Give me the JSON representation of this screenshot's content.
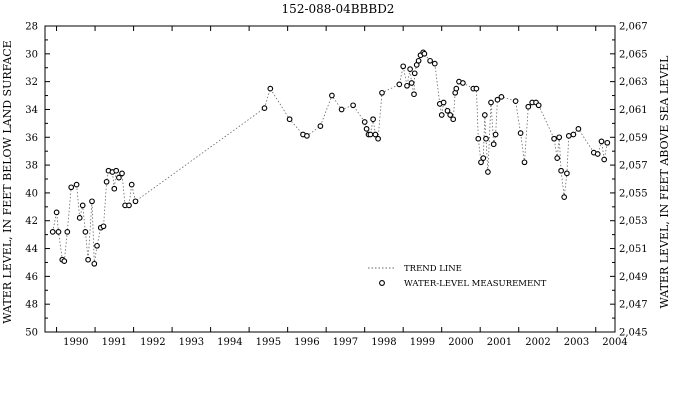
{
  "chart_data": {
    "type": "scatter",
    "title": "152-088-04BBBD2",
    "xlabel": "",
    "ylabel": "WATER LEVEL, IN FEET BELOW LAND SURFACE",
    "y2label": "WATER LEVEL, IN FEET ABOVE SEA LEVEL",
    "x_range": [
      1989.7,
      2004.5
    ],
    "ylim": [
      28,
      50
    ],
    "y_inverted": true,
    "y2lim": [
      2067,
      2045
    ],
    "grid": false,
    "legend_position": "lower-center",
    "x_tick_labels": [
      "1990",
      "1991",
      "1992",
      "1993",
      "1994",
      "1995",
      "1996",
      "1997",
      "1998",
      "1999",
      "2000",
      "2001",
      "2002",
      "2003",
      "2004"
    ],
    "y_ticks": [
      28,
      30,
      32,
      34,
      36,
      38,
      40,
      42,
      44,
      46,
      48,
      50
    ],
    "y_tick_labels": [
      "28",
      "30",
      "32",
      "34",
      "36",
      "38",
      "40",
      "42",
      "44",
      "46",
      "48",
      "50"
    ],
    "y2_tick_labels": [
      "2,067",
      "2,065",
      "2,063",
      "2,061",
      "2,059",
      "2,057",
      "2,055",
      "2,053",
      "2,051",
      "2,049",
      "2,047",
      "2,045"
    ],
    "series": [
      {
        "name": "TREND LINE",
        "style": "dotted-line",
        "points": [
          [
            1989.9,
            42.8
          ],
          [
            1990.0,
            41.4
          ],
          [
            1990.05,
            42.8
          ],
          [
            1990.15,
            44.8
          ],
          [
            1990.2,
            44.9
          ],
          [
            1990.28,
            42.8
          ],
          [
            1990.38,
            39.6
          ],
          [
            1990.52,
            39.4
          ],
          [
            1990.6,
            41.8
          ],
          [
            1990.68,
            40.9
          ],
          [
            1990.75,
            42.8
          ],
          [
            1990.82,
            44.8
          ],
          [
            1990.92,
            40.6
          ],
          [
            1990.98,
            45.1
          ],
          [
            1991.05,
            43.8
          ],
          [
            1991.15,
            42.5
          ],
          [
            1991.22,
            42.4
          ],
          [
            1991.3,
            39.2
          ],
          [
            1991.35,
            38.4
          ],
          [
            1991.45,
            38.5
          ],
          [
            1991.5,
            39.7
          ],
          [
            1991.55,
            38.4
          ],
          [
            1991.62,
            38.9
          ],
          [
            1991.7,
            38.6
          ],
          [
            1991.78,
            40.9
          ],
          [
            1991.88,
            40.9
          ],
          [
            1991.95,
            39.4
          ],
          [
            1992.05,
            40.6
          ],
          [
            1995.4,
            33.9
          ],
          [
            1995.55,
            32.5
          ],
          [
            1996.05,
            34.7
          ],
          [
            1996.4,
            35.8
          ],
          [
            1996.5,
            35.9
          ],
          [
            1996.85,
            35.2
          ],
          [
            1997.15,
            33.0
          ],
          [
            1997.4,
            34.0
          ],
          [
            1997.7,
            33.7
          ],
          [
            1998.0,
            34.9
          ],
          [
            1998.05,
            35.4
          ],
          [
            1998.1,
            35.8
          ],
          [
            1998.15,
            35.8
          ],
          [
            1998.22,
            34.7
          ],
          [
            1998.28,
            35.8
          ],
          [
            1998.35,
            36.1
          ],
          [
            1998.45,
            32.8
          ],
          [
            1998.9,
            32.2
          ],
          [
            1999.0,
            30.9
          ],
          [
            1999.1,
            32.3
          ],
          [
            1999.18,
            31.1
          ],
          [
            1999.22,
            32.1
          ],
          [
            1999.28,
            32.9
          ],
          [
            1999.3,
            31.4
          ],
          [
            1999.35,
            30.8
          ],
          [
            1999.4,
            30.5
          ],
          [
            1999.45,
            30.1
          ],
          [
            1999.52,
            29.9
          ],
          [
            1999.55,
            30.0
          ],
          [
            1999.7,
            30.5
          ],
          [
            1999.82,
            30.7
          ],
          [
            1999.95,
            33.6
          ],
          [
            2000.0,
            34.4
          ],
          [
            2000.05,
            33.5
          ],
          [
            2000.15,
            34.1
          ],
          [
            2000.22,
            34.4
          ],
          [
            2000.3,
            34.7
          ],
          [
            2000.35,
            32.8
          ],
          [
            2000.38,
            32.5
          ],
          [
            2000.45,
            32.0
          ],
          [
            2000.55,
            32.1
          ],
          [
            2000.82,
            32.5
          ],
          [
            2000.9,
            32.5
          ],
          [
            2000.95,
            36.1
          ],
          [
            2001.02,
            37.8
          ],
          [
            2001.08,
            37.5
          ],
          [
            2001.12,
            34.4
          ],
          [
            2001.15,
            36.1
          ],
          [
            2001.2,
            38.5
          ],
          [
            2001.28,
            33.5
          ],
          [
            2001.35,
            36.5
          ],
          [
            2001.4,
            35.8
          ],
          [
            2001.45,
            33.3
          ],
          [
            2001.55,
            33.1
          ],
          [
            2001.92,
            33.4
          ],
          [
            2002.05,
            35.7
          ],
          [
            2002.15,
            37.8
          ],
          [
            2002.25,
            33.8
          ],
          [
            2002.35,
            33.5
          ],
          [
            2002.45,
            33.5
          ],
          [
            2002.52,
            33.7
          ],
          [
            2002.92,
            36.1
          ],
          [
            2003.0,
            37.5
          ],
          [
            2003.05,
            36.0
          ],
          [
            2003.1,
            38.4
          ],
          [
            2003.18,
            40.3
          ],
          [
            2003.25,
            38.6
          ],
          [
            2003.3,
            35.9
          ],
          [
            2003.42,
            35.8
          ],
          [
            2003.55,
            35.4
          ],
          [
            2003.95,
            37.1
          ],
          [
            2004.05,
            37.2
          ],
          [
            2004.15,
            36.3
          ],
          [
            2004.22,
            37.6
          ],
          [
            2004.3,
            36.4
          ]
        ]
      },
      {
        "name": "WATER-LEVEL MEASUREMENT",
        "style": "open-circle-markers",
        "points": [
          [
            1989.9,
            42.8
          ],
          [
            1990.0,
            41.4
          ],
          [
            1990.05,
            42.8
          ],
          [
            1990.15,
            44.8
          ],
          [
            1990.2,
            44.9
          ],
          [
            1990.28,
            42.8
          ],
          [
            1990.38,
            39.6
          ],
          [
            1990.52,
            39.4
          ],
          [
            1990.6,
            41.8
          ],
          [
            1990.68,
            40.9
          ],
          [
            1990.75,
            42.8
          ],
          [
            1990.82,
            44.8
          ],
          [
            1990.92,
            40.6
          ],
          [
            1990.98,
            45.1
          ],
          [
            1991.05,
            43.8
          ],
          [
            1991.15,
            42.5
          ],
          [
            1991.22,
            42.4
          ],
          [
            1991.3,
            39.2
          ],
          [
            1991.35,
            38.4
          ],
          [
            1991.45,
            38.5
          ],
          [
            1991.5,
            39.7
          ],
          [
            1991.55,
            38.4
          ],
          [
            1991.62,
            38.9
          ],
          [
            1991.7,
            38.6
          ],
          [
            1991.78,
            40.9
          ],
          [
            1991.88,
            40.9
          ],
          [
            1991.95,
            39.4
          ],
          [
            1992.05,
            40.6
          ],
          [
            1995.4,
            33.9
          ],
          [
            1995.55,
            32.5
          ],
          [
            1996.05,
            34.7
          ],
          [
            1996.4,
            35.8
          ],
          [
            1996.5,
            35.9
          ],
          [
            1996.85,
            35.2
          ],
          [
            1997.15,
            33.0
          ],
          [
            1997.4,
            34.0
          ],
          [
            1997.7,
            33.7
          ],
          [
            1998.0,
            34.9
          ],
          [
            1998.05,
            35.4
          ],
          [
            1998.1,
            35.8
          ],
          [
            1998.15,
            35.8
          ],
          [
            1998.22,
            34.7
          ],
          [
            1998.28,
            35.8
          ],
          [
            1998.35,
            36.1
          ],
          [
            1998.45,
            32.8
          ],
          [
            1998.9,
            32.2
          ],
          [
            1999.0,
            30.9
          ],
          [
            1999.1,
            32.3
          ],
          [
            1999.18,
            31.1
          ],
          [
            1999.22,
            32.1
          ],
          [
            1999.28,
            32.9
          ],
          [
            1999.3,
            31.4
          ],
          [
            1999.35,
            30.8
          ],
          [
            1999.4,
            30.5
          ],
          [
            1999.45,
            30.1
          ],
          [
            1999.52,
            29.9
          ],
          [
            1999.55,
            30.0
          ],
          [
            1999.7,
            30.5
          ],
          [
            1999.82,
            30.7
          ],
          [
            1999.95,
            33.6
          ],
          [
            2000.0,
            34.4
          ],
          [
            2000.05,
            33.5
          ],
          [
            2000.15,
            34.1
          ],
          [
            2000.22,
            34.4
          ],
          [
            2000.3,
            34.7
          ],
          [
            2000.35,
            32.8
          ],
          [
            2000.38,
            32.5
          ],
          [
            2000.45,
            32.0
          ],
          [
            2000.55,
            32.1
          ],
          [
            2000.82,
            32.5
          ],
          [
            2000.9,
            32.5
          ],
          [
            2000.95,
            36.1
          ],
          [
            2001.02,
            37.8
          ],
          [
            2001.08,
            37.5
          ],
          [
            2001.12,
            34.4
          ],
          [
            2001.15,
            36.1
          ],
          [
            2001.2,
            38.5
          ],
          [
            2001.28,
            33.5
          ],
          [
            2001.35,
            36.5
          ],
          [
            2001.4,
            35.8
          ],
          [
            2001.45,
            33.3
          ],
          [
            2001.55,
            33.1
          ],
          [
            2001.92,
            33.4
          ],
          [
            2002.05,
            35.7
          ],
          [
            2002.15,
            37.8
          ],
          [
            2002.25,
            33.8
          ],
          [
            2002.35,
            33.5
          ],
          [
            2002.45,
            33.5
          ],
          [
            2002.52,
            33.7
          ],
          [
            2002.92,
            36.1
          ],
          [
            2003.0,
            37.5
          ],
          [
            2003.05,
            36.0
          ],
          [
            2003.1,
            38.4
          ],
          [
            2003.18,
            40.3
          ],
          [
            2003.25,
            38.6
          ],
          [
            2003.3,
            35.9
          ],
          [
            2003.42,
            35.8
          ],
          [
            2003.55,
            35.4
          ],
          [
            2003.95,
            37.1
          ],
          [
            2004.05,
            37.2
          ],
          [
            2004.15,
            36.3
          ],
          [
            2004.22,
            37.6
          ],
          [
            2004.3,
            36.4
          ]
        ]
      }
    ]
  }
}
